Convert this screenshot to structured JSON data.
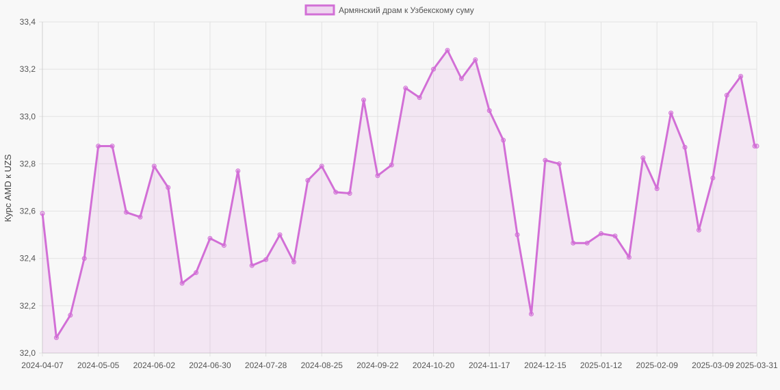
{
  "chart_data": {
    "type": "line",
    "ylabel": "Курс AMD к UZS",
    "ylim": [
      32.0,
      33.4
    ],
    "y_ticks": [
      "32,0",
      "32,2",
      "32,4",
      "32,6",
      "32,8",
      "33,0",
      "33,2",
      "33,4"
    ],
    "x_tick_labels": [
      "2024-04-07",
      "2024-05-05",
      "2024-06-02",
      "2024-06-30",
      "2024-07-28",
      "2024-08-25",
      "2024-09-22",
      "2024-10-20",
      "2024-11-17",
      "2024-12-15",
      "2025-01-12",
      "2025-02-09",
      "2025-03-09",
      "2025-03-31"
    ],
    "grid": true,
    "legend_position": "top",
    "series": [
      {
        "name": "Армянский драм к Узбекскому суму",
        "color": "#d26fd6",
        "fill": "rgba(210,111,214,0.12)",
        "x": [
          "2024-04-07",
          "2024-04-14",
          "2024-04-21",
          "2024-04-28",
          "2024-05-05",
          "2024-05-12",
          "2024-05-19",
          "2024-05-26",
          "2024-06-02",
          "2024-06-09",
          "2024-06-16",
          "2024-06-23",
          "2024-06-30",
          "2024-07-07",
          "2024-07-14",
          "2024-07-21",
          "2024-07-28",
          "2024-08-04",
          "2024-08-11",
          "2024-08-18",
          "2024-08-25",
          "2024-09-01",
          "2024-09-08",
          "2024-09-15",
          "2024-09-22",
          "2024-09-29",
          "2024-10-06",
          "2024-10-13",
          "2024-10-20",
          "2024-10-27",
          "2024-11-03",
          "2024-11-10",
          "2024-11-17",
          "2024-11-24",
          "2024-12-01",
          "2024-12-08",
          "2024-12-15",
          "2024-12-22",
          "2024-12-29",
          "2025-01-05",
          "2025-01-12",
          "2025-01-19",
          "2025-01-26",
          "2025-02-02",
          "2025-02-09",
          "2025-02-16",
          "2025-02-23",
          "2025-03-02",
          "2025-03-09",
          "2025-03-16",
          "2025-03-23",
          "2025-03-30",
          "2025-03-31"
        ],
        "values": [
          32.59,
          32.065,
          32.16,
          32.4,
          32.875,
          32.875,
          32.595,
          32.575,
          32.79,
          32.7,
          32.295,
          32.34,
          32.485,
          32.455,
          32.77,
          32.37,
          32.395,
          32.5,
          32.385,
          32.73,
          32.79,
          32.68,
          32.675,
          33.07,
          32.75,
          32.795,
          33.12,
          33.08,
          33.2,
          33.28,
          33.16,
          33.24,
          33.025,
          32.9,
          32.5,
          32.165,
          32.815,
          32.8,
          32.465,
          32.465,
          32.505,
          32.495,
          32.405,
          32.825,
          32.695,
          33.015,
          32.87,
          32.52,
          32.74,
          33.09,
          33.17,
          32.875,
          32.875
        ]
      }
    ]
  }
}
